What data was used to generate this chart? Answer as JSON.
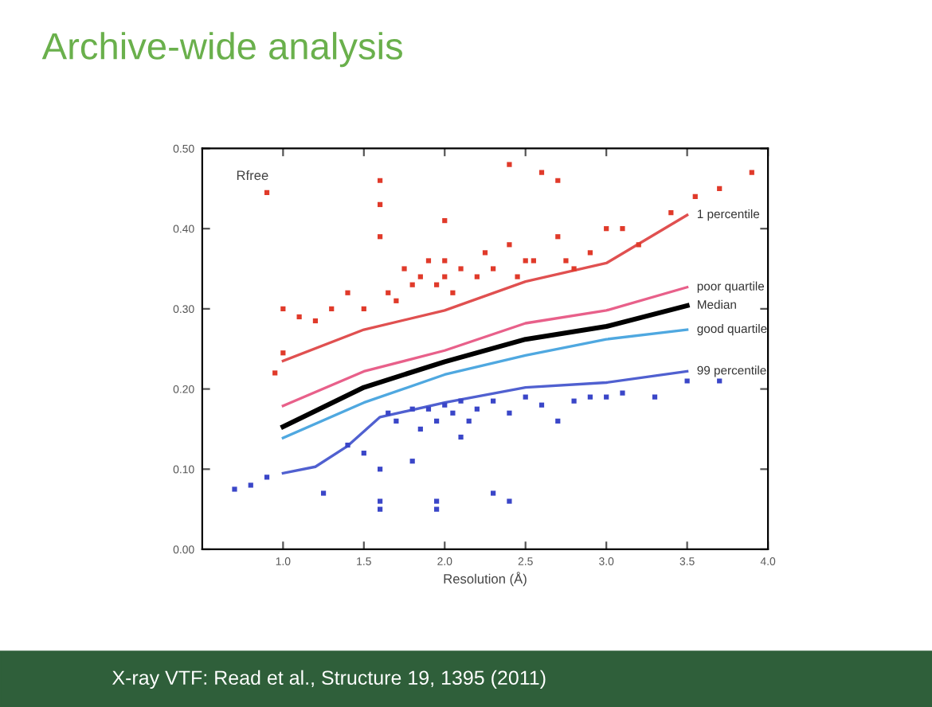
{
  "chart_data": {
    "type": "scatter",
    "title": "Archive-wide analysis",
    "xlabel": "Resolution (Å)",
    "annotations": [
      "Rfree",
      "X-ray VTF: Read et al., Structure 19, 1395 (2011)"
    ],
    "xlim": [
      0.5,
      4.0
    ],
    "ylim": [
      0,
      0.5
    ],
    "xticks": [
      {
        "value": 1.0,
        "label": "1.0"
      },
      {
        "value": 1.5,
        "label": "1.5"
      },
      {
        "value": 2.0,
        "label": "2.0"
      },
      {
        "value": 2.5,
        "label": "2.5"
      },
      {
        "value": 3.0,
        "label": "3.0"
      },
      {
        "value": 3.5,
        "label": "3.5"
      },
      {
        "value": 4.0,
        "label": "4.0"
      }
    ],
    "yticks": [
      {
        "value": 0,
        "label": "0.00"
      },
      {
        "value": 0.1,
        "label": "0.10"
      },
      {
        "value": 0.2,
        "label": "0.20"
      },
      {
        "value": 0.3,
        "label": "0.30"
      },
      {
        "value": 0.4,
        "label": "0.40"
      },
      {
        "value": 0.5,
        "label": "0.50"
      }
    ],
    "grid": false,
    "legend": false,
    "series": [
      {
        "marker": "square",
        "color": "#e03a2a",
        "x": [
          0.9,
          1.0,
          1.0,
          0.95,
          1.1,
          1.2,
          1.3,
          1.4,
          1.5,
          1.6,
          1.6,
          1.6,
          1.65,
          1.7,
          1.75,
          1.8,
          1.85,
          1.9,
          1.95,
          2.0,
          2.0,
          2.0,
          2.05,
          2.1,
          2.2,
          2.25,
          2.3,
          2.4,
          2.45,
          2.5,
          2.55,
          2.6,
          2.7,
          2.75,
          2.8,
          2.9,
          3.0,
          3.1,
          3.2,
          3.4,
          3.55,
          3.7,
          3.9,
          2.4,
          2.7
        ],
        "values": [
          0.445,
          0.3,
          0.245,
          0.22,
          0.29,
          0.285,
          0.3,
          0.32,
          0.3,
          0.46,
          0.43,
          0.39,
          0.32,
          0.31,
          0.35,
          0.33,
          0.34,
          0.36,
          0.33,
          0.41,
          0.36,
          0.34,
          0.32,
          0.35,
          0.34,
          0.37,
          0.35,
          0.38,
          0.34,
          0.36,
          0.36,
          0.47,
          0.39,
          0.36,
          0.35,
          0.37,
          0.4,
          0.4,
          0.38,
          0.42,
          0.44,
          0.45,
          0.47,
          0.48,
          0.46
        ]
      },
      {
        "marker": "square",
        "color": "#3a46c8",
        "x": [
          0.7,
          0.8,
          0.9,
          1.25,
          1.4,
          1.5,
          1.6,
          1.6,
          1.6,
          1.65,
          1.7,
          1.8,
          1.85,
          1.9,
          1.95,
          1.95,
          1.95,
          2.0,
          2.05,
          2.1,
          2.15,
          2.2,
          2.3,
          2.4,
          2.5,
          2.6,
          2.7,
          2.8,
          2.9,
          3.0,
          3.1,
          3.3,
          3.5,
          3.7,
          2.3,
          2.4,
          1.8,
          2.1
        ],
        "values": [
          0.075,
          0.08,
          0.09,
          0.07,
          0.13,
          0.12,
          0.1,
          0.06,
          0.05,
          0.17,
          0.16,
          0.175,
          0.15,
          0.175,
          0.16,
          0.06,
          0.05,
          0.18,
          0.17,
          0.185,
          0.16,
          0.175,
          0.185,
          0.17,
          0.19,
          0.18,
          0.16,
          0.185,
          0.19,
          0.19,
          0.195,
          0.19,
          0.21,
          0.21,
          0.07,
          0.06,
          0.11,
          0.14
        ]
      },
      {
        "type": "line",
        "name": "1 percentile",
        "color": "#e05050",
        "x": [
          1.0,
          1.5,
          2.0,
          2.5,
          3.0,
          3.5
        ],
        "values": [
          0.235,
          0.274,
          0.298,
          0.334,
          0.357,
          0.417
        ]
      },
      {
        "type": "line",
        "name": "poor quartile",
        "color": "#e8608a",
        "x": [
          1.0,
          1.5,
          2.0,
          2.5,
          3.0,
          3.5
        ],
        "values": [
          0.179,
          0.222,
          0.248,
          0.282,
          0.298,
          0.327
        ]
      },
      {
        "type": "line",
        "name": "Median",
        "color": "#000000",
        "x": [
          1.0,
          1.5,
          2.0,
          2.5,
          3.0,
          3.5
        ],
        "values": [
          0.153,
          0.202,
          0.234,
          0.262,
          0.278,
          0.304
        ]
      },
      {
        "type": "line",
        "name": "good quartile",
        "color": "#4fa8e0",
        "x": [
          1.0,
          1.5,
          2.0,
          2.5,
          3.0,
          3.5
        ],
        "values": [
          0.139,
          0.183,
          0.218,
          0.242,
          0.262,
          0.274
        ]
      },
      {
        "type": "line",
        "name": "99 percentile",
        "color": "#5060d0",
        "x": [
          1.0,
          1.2,
          1.4,
          1.6,
          2.0,
          2.5,
          3.0,
          3.5
        ],
        "values": [
          0.095,
          0.103,
          0.129,
          0.165,
          0.183,
          0.202,
          0.208,
          0.222
        ]
      }
    ]
  }
}
